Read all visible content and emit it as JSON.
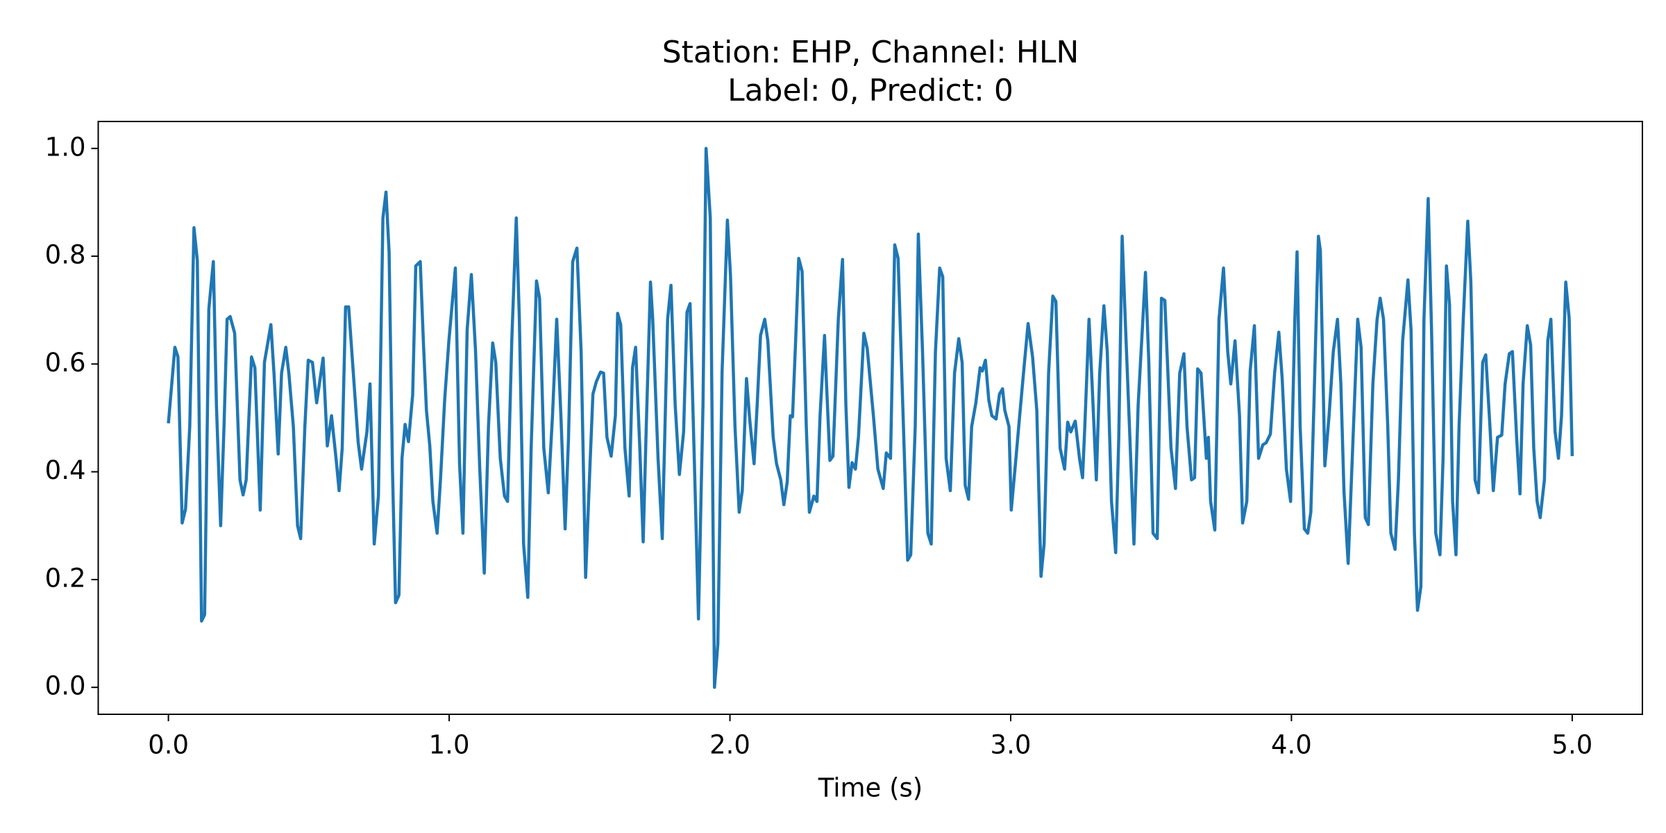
{
  "chart_data": {
    "type": "line",
    "title": [
      "Station: EHP, Channel: HLN",
      "Label: 0, Predict: 0"
    ],
    "x_label": "Time (s)",
    "xlim": [
      -0.25,
      5.25
    ],
    "ylim": [
      -0.05,
      1.05
    ],
    "xticks": [
      {
        "value": 0,
        "label": "0.0"
      },
      {
        "value": 1,
        "label": "1.0"
      },
      {
        "value": 2,
        "label": "2.0"
      },
      {
        "value": 3,
        "label": "3.0"
      },
      {
        "value": 4,
        "label": "4.0"
      },
      {
        "value": 5,
        "label": "5.0"
      }
    ],
    "yticks": [
      {
        "value": 0,
        "label": "0.0"
      },
      0.2,
      0.4,
      0.6,
      0.8,
      {
        "value": 1,
        "label": "1.0"
      }
    ],
    "grid": false,
    "series": [
      {
        "color": "#1f77b4",
        "x": [
          0,
          0.023,
          0.034,
          0.049,
          0.061,
          0.076,
          0.091,
          0.103,
          0.118,
          0.129,
          0.144,
          0.16,
          0.171,
          0.186,
          0.198,
          0.209,
          0.22,
          0.236,
          0.255,
          0.266,
          0.277,
          0.296,
          0.308,
          0.327,
          0.342,
          0.365,
          0.376,
          0.391,
          0.403,
          0.418,
          0.429,
          0.445,
          0.46,
          0.471,
          0.486,
          0.498,
          0.513,
          0.528,
          0.551,
          0.566,
          0.581,
          0.597,
          0.608,
          0.619,
          0.631,
          0.642,
          0.657,
          0.676,
          0.688,
          0.707,
          0.718,
          0.733,
          0.748,
          0.764,
          0.775,
          0.786,
          0.798,
          0.809,
          0.821,
          0.832,
          0.843,
          0.855,
          0.87,
          0.881,
          0.897,
          0.908,
          0.919,
          0.931,
          0.942,
          0.957,
          0.969,
          0.984,
          0.999,
          1.022,
          1.037,
          1.049,
          1.064,
          1.079,
          1.094,
          1.109,
          1.125,
          1.14,
          1.155,
          1.166,
          1.182,
          1.197,
          1.208,
          1.223,
          1.239,
          1.25,
          1.265,
          1.28,
          1.292,
          1.311,
          1.322,
          1.337,
          1.353,
          1.368,
          1.383,
          1.398,
          1.413,
          1.425,
          1.44,
          1.455,
          1.47,
          1.486,
          1.501,
          1.512,
          1.524,
          1.539,
          1.55,
          1.562,
          1.577,
          1.592,
          1.6,
          1.611,
          1.626,
          1.641,
          1.653,
          1.664,
          1.679,
          1.691,
          1.702,
          1.717,
          1.725,
          1.744,
          1.759,
          1.778,
          1.79,
          1.805,
          1.82,
          1.835,
          1.847,
          1.858,
          1.873,
          1.888,
          1.904,
          1.915,
          1.93,
          1.945,
          1.957,
          1.972,
          1.991,
          2.002,
          2.018,
          2.033,
          2.044,
          2.059,
          2.071,
          2.086,
          2.097,
          2.109,
          2.124,
          2.135,
          2.154,
          2.166,
          2.181,
          2.192,
          2.204,
          2.215,
          2.223,
          2.234,
          2.245,
          2.257,
          2.272,
          2.283,
          2.299,
          2.31,
          2.321,
          2.337,
          2.344,
          2.356,
          2.367,
          2.386,
          2.401,
          2.413,
          2.424,
          2.435,
          2.447,
          2.458,
          2.477,
          2.489,
          2.511,
          2.527,
          2.546,
          2.557,
          2.572,
          2.587,
          2.599,
          2.618,
          2.633,
          2.644,
          2.66,
          2.671,
          2.686,
          2.705,
          2.717,
          2.732,
          2.747,
          2.758,
          2.77,
          2.785,
          2.8,
          2.815,
          2.827,
          2.838,
          2.85,
          2.861,
          2.876,
          2.891,
          2.899,
          2.91,
          2.922,
          2.933,
          2.948,
          2.96,
          2.971,
          2.979,
          2.994,
          3.002,
          3.017,
          3.032,
          3.047,
          3.062,
          3.078,
          3.093,
          3.108,
          3.119,
          3.135,
          3.15,
          3.161,
          3.176,
          3.192,
          3.203,
          3.214,
          3.23,
          3.245,
          3.256,
          3.264,
          3.279,
          3.29,
          3.305,
          3.317,
          3.332,
          3.344,
          3.359,
          3.374,
          3.385,
          3.397,
          3.408,
          3.423,
          3.439,
          3.454,
          3.48,
          3.492,
          3.507,
          3.522,
          3.537,
          3.549,
          3.56,
          3.571,
          3.587,
          3.602,
          3.617,
          3.628,
          3.644,
          3.655,
          3.666,
          3.678,
          3.697,
          3.704,
          3.712,
          3.727,
          3.742,
          3.758,
          3.773,
          3.784,
          3.799,
          3.815,
          3.826,
          3.841,
          3.853,
          3.868,
          3.883,
          3.898,
          3.91,
          3.925,
          3.94,
          3.955,
          3.967,
          3.982,
          3.997,
          4.012,
          4.02,
          4.031,
          4.046,
          4.058,
          4.069,
          4.08,
          4.096,
          4.103,
          4.119,
          4.134,
          4.149,
          4.164,
          4.176,
          4.187,
          4.202,
          4.221,
          4.236,
          4.248,
          4.263,
          4.274,
          4.29,
          4.305,
          4.316,
          4.328,
          4.343,
          4.354,
          4.369,
          4.381,
          4.396,
          4.415,
          4.426,
          4.438,
          4.449,
          4.461,
          4.472,
          4.487,
          4.499,
          4.514,
          4.529,
          4.54,
          4.552,
          4.563,
          4.574,
          4.586,
          4.597,
          4.612,
          4.628,
          4.639,
          4.654,
          4.666,
          4.681,
          4.692,
          4.707,
          4.719,
          4.734,
          4.749,
          4.761,
          4.776,
          4.787,
          4.802,
          4.814,
          4.825,
          4.84,
          4.852,
          4.863,
          4.875,
          4.886,
          4.901,
          4.913,
          4.924,
          4.939,
          4.951,
          4.962,
          4.977,
          4.989,
          5.0
        ],
        "values": [
          0.49,
          0.631,
          0.613,
          0.305,
          0.331,
          0.484,
          0.853,
          0.792,
          0.123,
          0.135,
          0.702,
          0.79,
          0.524,
          0.3,
          0.484,
          0.683,
          0.688,
          0.657,
          0.385,
          0.357,
          0.385,
          0.613,
          0.593,
          0.329,
          0.603,
          0.673,
          0.583,
          0.433,
          0.583,
          0.631,
          0.583,
          0.484,
          0.3,
          0.276,
          0.484,
          0.607,
          0.603,
          0.528,
          0.611,
          0.448,
          0.504,
          0.425,
          0.365,
          0.444,
          0.706,
          0.706,
          0.595,
          0.454,
          0.405,
          0.474,
          0.563,
          0.266,
          0.355,
          0.871,
          0.919,
          0.808,
          0.405,
          0.157,
          0.171,
          0.425,
          0.488,
          0.456,
          0.543,
          0.782,
          0.79,
          0.643,
          0.514,
          0.448,
          0.345,
          0.286,
          0.385,
          0.534,
          0.643,
          0.778,
          0.415,
          0.286,
          0.663,
          0.766,
          0.623,
          0.405,
          0.212,
          0.484,
          0.639,
          0.603,
          0.425,
          0.355,
          0.345,
          0.643,
          0.871,
          0.683,
          0.266,
          0.167,
          0.444,
          0.754,
          0.722,
          0.444,
          0.361,
          0.504,
          0.683,
          0.504,
          0.294,
          0.462,
          0.79,
          0.815,
          0.623,
          0.204,
          0.405,
          0.544,
          0.567,
          0.585,
          0.583,
          0.464,
          0.429,
          0.504,
          0.694,
          0.673,
          0.444,
          0.355,
          0.593,
          0.631,
          0.444,
          0.27,
          0.484,
          0.752,
          0.683,
          0.425,
          0.276,
          0.683,
          0.746,
          0.524,
          0.395,
          0.474,
          0.696,
          0.712,
          0.425,
          0.127,
          0.524,
          1.0,
          0.871,
          0.0,
          0.081,
          0.585,
          0.867,
          0.764,
          0.484,
          0.325,
          0.365,
          0.573,
          0.494,
          0.415,
          0.524,
          0.653,
          0.683,
          0.643,
          0.464,
          0.415,
          0.385,
          0.339,
          0.381,
          0.504,
          0.502,
          0.643,
          0.796,
          0.772,
          0.484,
          0.325,
          0.355,
          0.345,
          0.504,
          0.653,
          0.563,
          0.421,
          0.429,
          0.683,
          0.794,
          0.524,
          0.371,
          0.417,
          0.405,
          0.466,
          0.657,
          0.629,
          0.504,
          0.405,
          0.369,
          0.435,
          0.425,
          0.821,
          0.796,
          0.484,
          0.236,
          0.246,
          0.484,
          0.841,
          0.623,
          0.286,
          0.266,
          0.623,
          0.778,
          0.762,
          0.425,
          0.365,
          0.583,
          0.647,
          0.603,
          0.375,
          0.349,
          0.484,
          0.528,
          0.593,
          0.587,
          0.607,
          0.533,
          0.504,
          0.498,
          0.544,
          0.554,
          0.514,
          0.484,
          0.329,
          0.415,
          0.504,
          0.591,
          0.675,
          0.613,
          0.514,
          0.206,
          0.266,
          0.583,
          0.726,
          0.716,
          0.444,
          0.405,
          0.492,
          0.474,
          0.494,
          0.425,
          0.389,
          0.484,
          0.683,
          0.563,
          0.385,
          0.583,
          0.708,
          0.623,
          0.345,
          0.25,
          0.464,
          0.837,
          0.683,
          0.484,
          0.266,
          0.524,
          0.77,
          0.603,
          0.286,
          0.276,
          0.722,
          0.718,
          0.583,
          0.444,
          0.369,
          0.583,
          0.619,
          0.484,
          0.385,
          0.389,
          0.591,
          0.583,
          0.425,
          0.464,
          0.345,
          0.292,
          0.683,
          0.778,
          0.623,
          0.563,
          0.643,
          0.504,
          0.305,
          0.345,
          0.587,
          0.671,
          0.425,
          0.45,
          0.454,
          0.47,
          0.583,
          0.659,
          0.573,
          0.405,
          0.345,
          0.683,
          0.808,
          0.484,
          0.294,
          0.286,
          0.325,
          0.524,
          0.837,
          0.81,
          0.411,
          0.504,
          0.623,
          0.683,
          0.563,
          0.365,
          0.23,
          0.484,
          0.683,
          0.631,
          0.315,
          0.302,
          0.563,
          0.683,
          0.722,
          0.683,
          0.484,
          0.286,
          0.256,
          0.385,
          0.643,
          0.756,
          0.663,
          0.286,
          0.143,
          0.187,
          0.683,
          0.907,
          0.663,
          0.286,
          0.246,
          0.425,
          0.782,
          0.71,
          0.345,
          0.246,
          0.484,
          0.683,
          0.865,
          0.752,
          0.385,
          0.361,
          0.603,
          0.617,
          0.484,
          0.365,
          0.464,
          0.468,
          0.563,
          0.619,
          0.623,
          0.464,
          0.359,
          0.563,
          0.671,
          0.635,
          0.444,
          0.345,
          0.315,
          0.385,
          0.643,
          0.683,
          0.474,
          0.425,
          0.504,
          0.752,
          0.686,
          0.429
        ]
      }
    ]
  }
}
